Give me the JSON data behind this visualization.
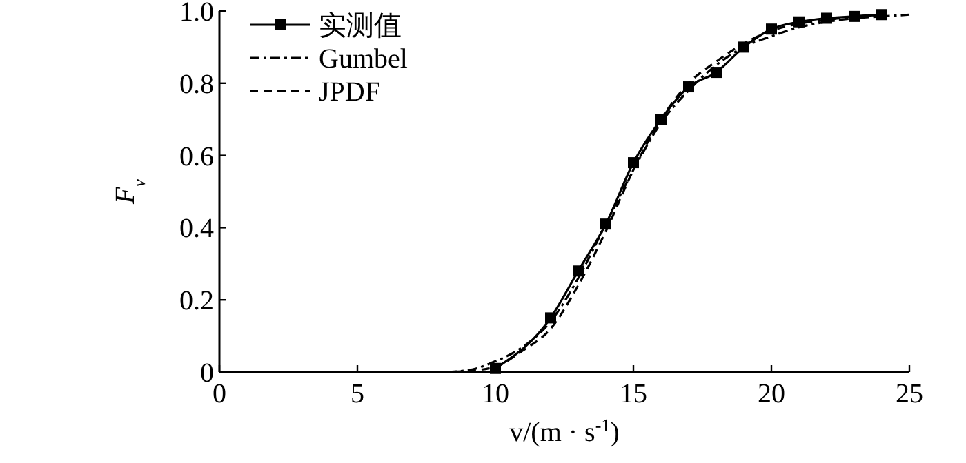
{
  "chart_data": {
    "type": "line",
    "xlabel": "v/(m · s$^{-1}$)",
    "ylabel": "F$_{v}$",
    "xlim": [
      0,
      25
    ],
    "ylim": [
      0,
      1
    ],
    "xticks": [
      0,
      5,
      10,
      15,
      20,
      25
    ],
    "yticks": [
      0,
      0.2,
      0.4,
      0.6,
      0.8,
      {
        "value": 1,
        "label": "1.0"
      }
    ],
    "grid": false,
    "legend": "top left",
    "series": [
      {
        "name": "实测值",
        "color": "#000000",
        "marker": "square",
        "line_style": "solid",
        "x": [
          10,
          12,
          13,
          14,
          15,
          16,
          17,
          18,
          19,
          20,
          21,
          22,
          23,
          24
        ],
        "values": [
          0.01,
          0.15,
          0.28,
          0.41,
          0.58,
          0.7,
          0.79,
          0.83,
          0.9,
          0.95,
          0.97,
          0.98,
          0.985,
          0.99
        ]
      },
      {
        "name": "Gumbel",
        "color": "#000000",
        "marker": "none",
        "line_style": "dashdot",
        "x": [
          0,
          8,
          9,
          10,
          11,
          12,
          13,
          14,
          15,
          16,
          17,
          18,
          19,
          20,
          21,
          22,
          23,
          24,
          25
        ],
        "values": [
          0,
          0,
          0.005,
          0.03,
          0.07,
          0.14,
          0.26,
          0.41,
          0.56,
          0.69,
          0.78,
          0.85,
          0.9,
          0.93,
          0.955,
          0.97,
          0.98,
          0.985,
          0.99
        ]
      },
      {
        "name": "JPDF",
        "color": "#000000",
        "marker": "none",
        "line_style": "dashed",
        "x": [
          0,
          8,
          9,
          10,
          11,
          12,
          13,
          14,
          15,
          16,
          17,
          18,
          19,
          20,
          21,
          22,
          23,
          24
        ],
        "values": [
          0,
          0,
          0.003,
          0.015,
          0.06,
          0.12,
          0.24,
          0.39,
          0.56,
          0.7,
          0.8,
          0.86,
          0.91,
          0.945,
          0.965,
          0.975,
          0.985,
          0.99
        ]
      }
    ]
  }
}
